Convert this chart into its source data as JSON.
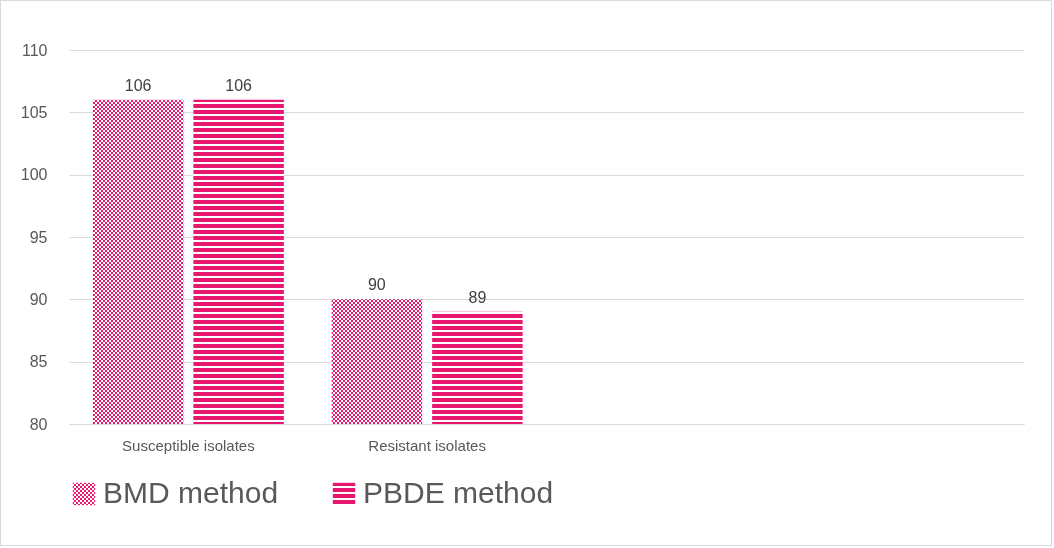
{
  "chart_data": {
    "type": "bar",
    "categories": [
      "Susceptible isolates",
      "Resistant isolates",
      null,
      null
    ],
    "series": [
      {
        "name": "BMD method",
        "color": "#e8176f",
        "values": [
          106,
          90,
          null,
          null
        ]
      },
      {
        "name": "PBDE method",
        "color": "#e8176f",
        "values": [
          106,
          89,
          null,
          null
        ]
      }
    ],
    "ylim": [
      80,
      110
    ],
    "yticks": [
      80,
      85,
      90,
      95,
      100,
      105,
      110
    ],
    "grid": "y",
    "legend": "bottom",
    "data_labels": true
  }
}
